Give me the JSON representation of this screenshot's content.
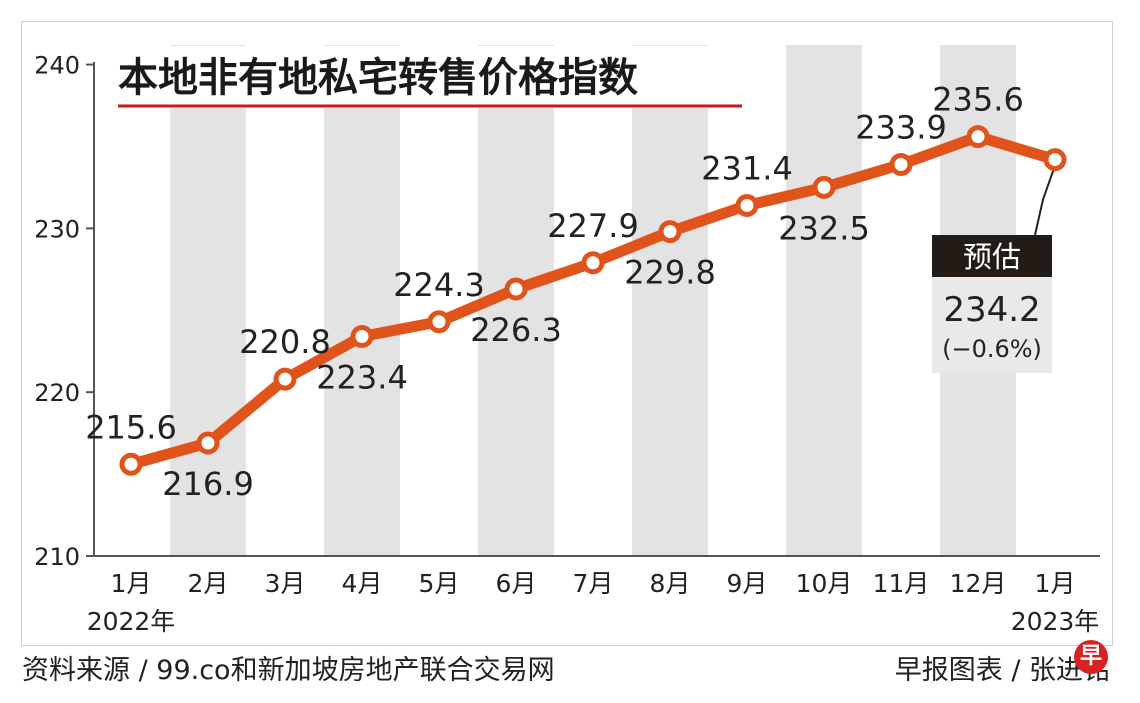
{
  "chart_data": {
    "type": "line",
    "title": "本地非有地私宅转售价格指数",
    "categories": [
      "1月",
      "2月",
      "3月",
      "4月",
      "5月",
      "6月",
      "7月",
      "8月",
      "9月",
      "10月",
      "11月",
      "12月",
      "1月"
    ],
    "year_labels": [
      "2022年",
      "2023年"
    ],
    "series": [
      {
        "values": [
          215.6,
          216.9,
          220.8,
          223.4,
          224.3,
          226.3,
          227.9,
          229.8,
          231.4,
          232.5,
          233.9,
          235.6,
          234.2
        ]
      }
    ],
    "data_labels": [
      "215.6",
      "216.9",
      "220.8",
      "223.4",
      "224.3",
      "226.3",
      "227.9",
      "229.8",
      "231.4",
      "232.5",
      "233.9",
      "235.6"
    ],
    "label_positions": [
      "above",
      "below",
      "above",
      "below",
      "above",
      "below",
      "above",
      "below",
      "above",
      "below",
      "above",
      "above"
    ],
    "ylim": [
      210,
      241.5
    ],
    "yticks": [
      "210",
      "220",
      "230",
      "240"
    ],
    "estimate": {
      "label": "预估",
      "value": "234.2",
      "change": "(−0.6%)"
    },
    "line_color": "#e0541c",
    "band_color": "#e3e3e3",
    "title_underline_color": "#c21a1a"
  },
  "footer": {
    "source": "资料来源 / 99.co和新加坡房地产联合交易网",
    "credit": "早报图表 / 张进铭",
    "logo": "早"
  }
}
